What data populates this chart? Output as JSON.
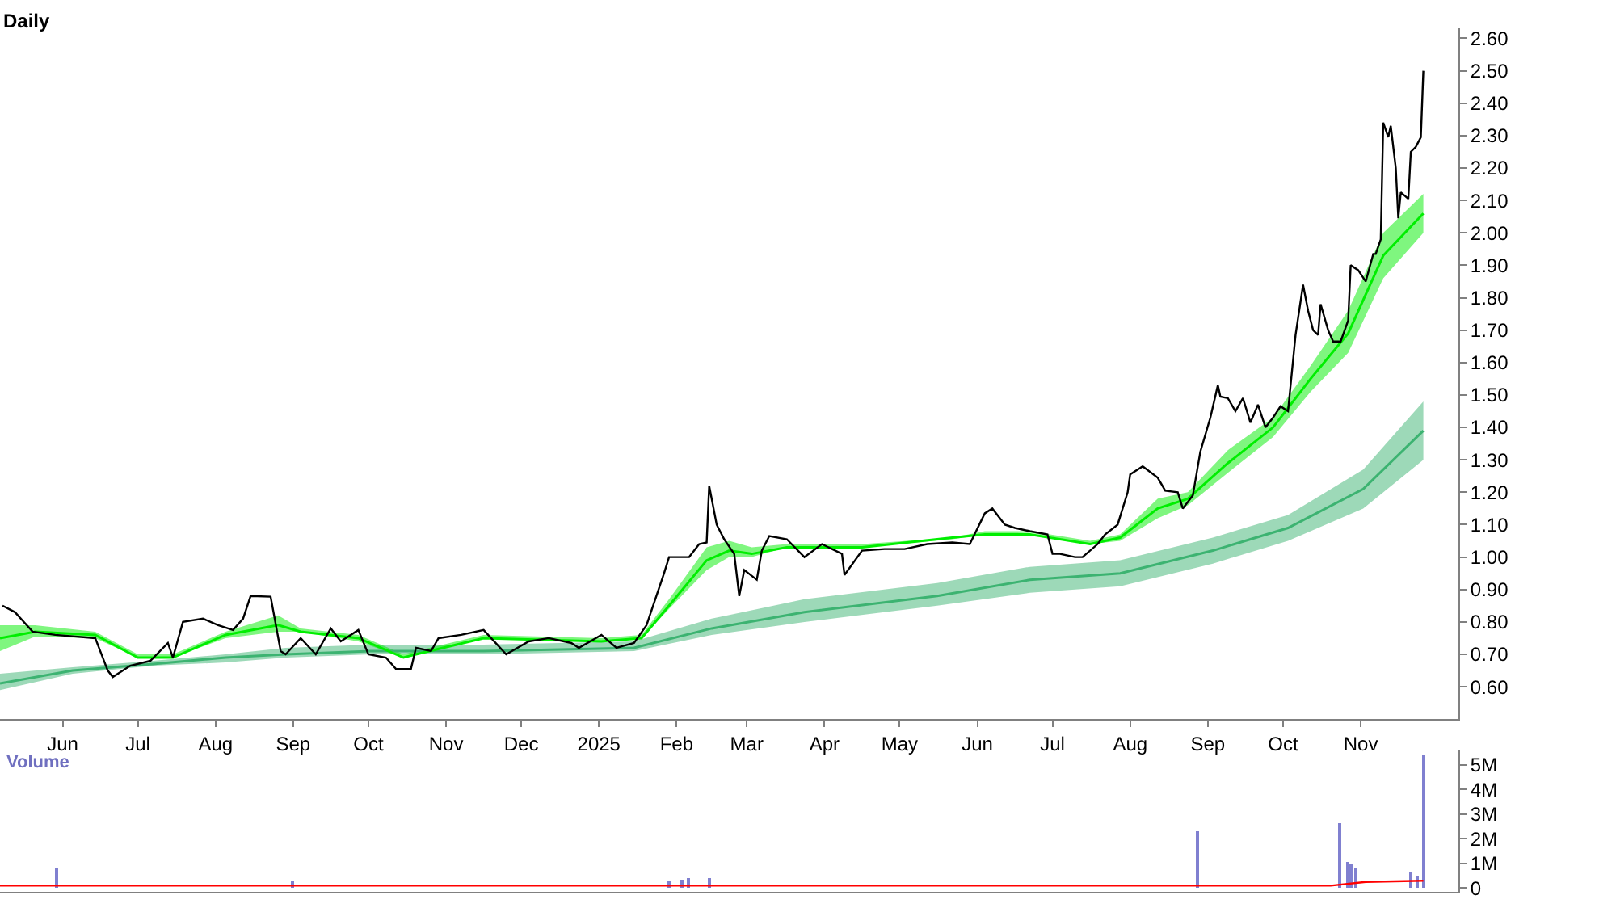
{
  "chart_data": [
    {
      "type": "line",
      "title": "Daily",
      "xlim": [
        "2024-05-07",
        "2025-12-10"
      ],
      "ylim": [
        0.5,
        2.63
      ],
      "xticks": [
        {
          "value": "2024-06-01",
          "label": "Jun"
        },
        {
          "value": "2024-07-01",
          "label": "Jul"
        },
        {
          "value": "2024-08-01",
          "label": "Aug"
        },
        {
          "value": "2024-09-01",
          "label": "Sep"
        },
        {
          "value": "2024-10-01",
          "label": "Oct"
        },
        {
          "value": "2024-11-01",
          "label": "Nov"
        },
        {
          "value": "2024-12-01",
          "label": "Dec"
        },
        {
          "value": "2025-01-01",
          "label": "2025"
        },
        {
          "value": "2025-02-01",
          "label": "Feb"
        },
        {
          "value": "2025-03-01",
          "label": "Mar"
        },
        {
          "value": "2025-04-01",
          "label": "Apr"
        },
        {
          "value": "2025-05-01",
          "label": "May"
        },
        {
          "value": "2025-06-01",
          "label": "Jun"
        },
        {
          "value": "2025-07-01",
          "label": "Jul"
        },
        {
          "value": "2025-08-01",
          "label": "Aug"
        },
        {
          "value": "2025-09-01",
          "label": "Sep"
        },
        {
          "value": "2025-10-01",
          "label": "Oct"
        },
        {
          "value": "2025-11-01",
          "label": "Nov"
        }
      ],
      "yticks": [
        {
          "value": 0.6,
          "label": "0.60"
        },
        {
          "value": 0.7,
          "label": "0.70"
        },
        {
          "value": 0.8,
          "label": "0.80"
        },
        {
          "value": 0.9,
          "label": "0.90"
        },
        {
          "value": 1.0,
          "label": "1.00"
        },
        {
          "value": 1.1,
          "label": "1.10"
        },
        {
          "value": 1.2,
          "label": "1.20"
        },
        {
          "value": 1.3,
          "label": "1.30"
        },
        {
          "value": 1.4,
          "label": "1.40"
        },
        {
          "value": 1.5,
          "label": "1.50"
        },
        {
          "value": 1.6,
          "label": "1.60"
        },
        {
          "value": 1.7,
          "label": "1.70"
        },
        {
          "value": 1.8,
          "label": "1.80"
        },
        {
          "value": 1.9,
          "label": "1.90"
        },
        {
          "value": 2.0,
          "label": "2.00"
        },
        {
          "value": 2.1,
          "label": "2.10"
        },
        {
          "value": 2.2,
          "label": "2.20"
        },
        {
          "value": 2.3,
          "label": "2.30"
        },
        {
          "value": 2.4,
          "label": "2.40"
        },
        {
          "value": 2.5,
          "label": "2.50"
        },
        {
          "value": 2.6,
          "label": "2.60"
        }
      ],
      "marker": "none",
      "line_style": "solid",
      "series": [
        {
          "color": "#3cb371",
          "x": [
            "2024-05-07",
            "2024-06-05",
            "2024-07-07",
            "2024-08-05",
            "2024-08-29",
            "2024-10-02",
            "2024-11-16",
            "2025-01-15",
            "2025-02-15",
            "2025-03-24",
            "2025-05-16",
            "2025-06-22",
            "2025-07-28",
            "2025-09-03",
            "2025-10-03",
            "2025-11-02",
            "2025-11-26"
          ],
          "lower": [
            0.59,
            0.64,
            0.665,
            0.675,
            0.69,
            0.7,
            0.7,
            0.71,
            0.76,
            0.8,
            0.85,
            0.89,
            0.91,
            0.98,
            1.05,
            1.15,
            1.3
          ],
          "upper": [
            0.64,
            0.66,
            0.68,
            0.7,
            0.72,
            0.73,
            0.73,
            0.74,
            0.81,
            0.87,
            0.92,
            0.97,
            0.99,
            1.06,
            1.13,
            1.27,
            1.48
          ],
          "values": [
            0.61,
            0.65,
            0.67,
            0.69,
            0.7,
            0.71,
            0.71,
            0.72,
            0.78,
            0.83,
            0.88,
            0.93,
            0.95,
            1.02,
            1.09,
            1.21,
            1.39
          ]
        },
        {
          "color": "#00ee00",
          "x": [
            "2024-05-07",
            "2024-05-21",
            "2024-06-14",
            "2024-07-01",
            "2024-07-15",
            "2024-08-05",
            "2024-08-26",
            "2024-09-04",
            "2024-09-27",
            "2024-10-15",
            "2024-10-20",
            "2024-11-16",
            "2025-01-02",
            "2025-01-18",
            "2025-01-29",
            "2025-02-13",
            "2025-02-22",
            "2025-03-03",
            "2025-03-17",
            "2025-04-16",
            "2025-05-22",
            "2025-06-04",
            "2025-06-22",
            "2025-07-16",
            "2025-07-28",
            "2025-08-12",
            "2025-08-24",
            "2025-09-09",
            "2025-09-27",
            "2025-10-12",
            "2025-10-27",
            "2025-11-10",
            "2025-11-26"
          ],
          "lower": [
            0.71,
            0.755,
            0.75,
            0.69,
            0.69,
            0.75,
            0.77,
            0.77,
            0.74,
            0.69,
            0.7,
            0.75,
            0.74,
            0.75,
            0.84,
            0.96,
            1.0,
            1.0,
            1.03,
            1.03,
            1.055,
            1.07,
            1.075,
            1.04,
            1.05,
            1.12,
            1.16,
            1.26,
            1.37,
            1.51,
            1.63,
            1.86,
            2.0
          ],
          "upper": [
            0.79,
            0.79,
            0.77,
            0.7,
            0.7,
            0.77,
            0.82,
            0.78,
            0.76,
            0.7,
            0.71,
            0.76,
            0.75,
            0.76,
            0.87,
            1.03,
            1.05,
            1.03,
            1.04,
            1.04,
            1.06,
            1.08,
            1.08,
            1.05,
            1.07,
            1.18,
            1.2,
            1.33,
            1.43,
            1.59,
            1.76,
            2.0,
            2.12
          ],
          "values": [
            0.75,
            0.77,
            0.76,
            0.69,
            0.69,
            0.76,
            0.79,
            0.77,
            0.75,
            0.69,
            0.7,
            0.75,
            0.74,
            0.75,
            0.85,
            0.99,
            1.02,
            1.01,
            1.03,
            1.03,
            1.06,
            1.07,
            1.07,
            1.04,
            1.06,
            1.15,
            1.18,
            1.29,
            1.4,
            1.55,
            1.69,
            1.93,
            2.06
          ]
        },
        {
          "color": "#000000",
          "x": [
            "2024-05-08",
            "2024-05-13",
            "2024-05-20",
            "2024-05-29",
            "2024-06-14",
            "2024-06-19",
            "2024-06-21",
            "2024-06-28",
            "2024-07-06",
            "2024-07-13",
            "2024-07-15",
            "2024-07-19",
            "2024-07-27",
            "2024-08-02",
            "2024-08-08",
            "2024-08-12",
            "2024-08-15",
            "2024-08-23",
            "2024-08-27",
            "2024-08-29",
            "2024-09-04",
            "2024-09-10",
            "2024-09-16",
            "2024-09-20",
            "2024-09-27",
            "2024-10-01",
            "2024-10-08",
            "2024-10-12",
            "2024-10-18",
            "2024-10-20",
            "2024-10-26",
            "2024-10-29",
            "2024-11-07",
            "2024-11-16",
            "2024-11-19",
            "2024-11-25",
            "2024-12-04",
            "2024-12-12",
            "2024-12-21",
            "2024-12-24",
            "2025-01-02",
            "2025-01-08",
            "2025-01-15",
            "2025-01-20",
            "2025-01-27",
            "2025-01-29",
            "2025-02-06",
            "2025-02-10",
            "2025-02-13",
            "2025-02-14",
            "2025-02-17",
            "2025-02-20",
            "2025-02-24",
            "2025-02-26",
            "2025-02-28",
            "2025-03-05",
            "2025-03-07",
            "2025-03-10",
            "2025-03-17",
            "2025-03-24",
            "2025-03-31",
            "2025-04-08",
            "2025-04-09",
            "2025-04-16",
            "2025-04-25",
            "2025-05-03",
            "2025-05-12",
            "2025-05-22",
            "2025-05-29",
            "2025-06-04",
            "2025-06-07",
            "2025-06-12",
            "2025-06-16",
            "2025-06-22",
            "2025-06-29",
            "2025-07-01",
            "2025-07-04",
            "2025-07-10",
            "2025-07-13",
            "2025-07-19",
            "2025-07-22",
            "2025-07-27",
            "2025-07-31",
            "2025-08-01",
            "2025-08-06",
            "2025-08-12",
            "2025-08-15",
            "2025-08-20",
            "2025-08-22",
            "2025-08-26",
            "2025-08-29",
            "2025-09-02",
            "2025-09-05",
            "2025-09-06",
            "2025-09-09",
            "2025-09-12",
            "2025-09-15",
            "2025-09-18",
            "2025-09-21",
            "2025-09-24",
            "2025-09-27",
            "2025-09-30",
            "2025-10-03",
            "2025-10-06",
            "2025-10-09",
            "2025-10-11",
            "2025-10-13",
            "2025-10-15",
            "2025-10-16",
            "2025-10-19",
            "2025-10-21",
            "2025-10-24",
            "2025-10-27",
            "2025-10-28",
            "2025-10-31",
            "2025-11-03",
            "2025-11-06",
            "2025-11-07",
            "2025-11-09",
            "2025-11-10",
            "2025-11-12",
            "2025-11-13",
            "2025-11-15",
            "2025-11-16",
            "2025-11-17",
            "2025-11-20",
            "2025-11-21",
            "2025-11-23",
            "2025-11-25",
            "2025-11-26"
          ],
          "values": [
            0.85,
            0.83,
            0.77,
            0.76,
            0.75,
            0.65,
            0.63,
            0.665,
            0.68,
            0.735,
            0.69,
            0.8,
            0.81,
            0.79,
            0.775,
            0.81,
            0.88,
            0.878,
            0.71,
            0.7,
            0.75,
            0.7,
            0.78,
            0.74,
            0.775,
            0.7,
            0.69,
            0.655,
            0.655,
            0.72,
            0.71,
            0.75,
            0.76,
            0.775,
            0.75,
            0.7,
            0.74,
            0.75,
            0.735,
            0.72,
            0.76,
            0.72,
            0.735,
            0.79,
            0.95,
            1.0,
            1.0,
            1.04,
            1.045,
            1.22,
            1.1,
            1.055,
            1.01,
            0.88,
            0.96,
            0.93,
            1.02,
            1.065,
            1.055,
            1.0,
            1.04,
            1.01,
            0.945,
            1.02,
            1.025,
            1.025,
            1.04,
            1.045,
            1.04,
            1.135,
            1.15,
            1.1,
            1.09,
            1.08,
            1.07,
            1.01,
            1.01,
            1.0,
            1.0,
            1.04,
            1.07,
            1.1,
            1.2,
            1.255,
            1.28,
            1.245,
            1.205,
            1.2,
            1.15,
            1.19,
            1.325,
            1.43,
            1.53,
            1.495,
            1.49,
            1.45,
            1.49,
            1.415,
            1.47,
            1.4,
            1.43,
            1.465,
            1.45,
            1.685,
            1.84,
            1.76,
            1.7,
            1.685,
            1.78,
            1.7,
            1.665,
            1.665,
            1.73,
            1.9,
            1.885,
            1.85,
            1.935,
            1.935,
            1.98,
            2.34,
            2.295,
            2.33,
            2.2,
            2.045,
            2.125,
            2.105,
            2.25,
            2.265,
            2.295,
            2.5
          ]
        }
      ]
    },
    {
      "type": "bar",
      "title": "Volume",
      "xlim": [
        "2024-05-07",
        "2025-12-10"
      ],
      "ylim": [
        -0.15,
        5.6
      ],
      "tick_labels": "y",
      "yticks": [
        {
          "value": 0,
          "label": "0"
        },
        {
          "value": 1,
          "label": "1M"
        },
        {
          "value": 2,
          "label": "2M"
        },
        {
          "value": 3,
          "label": "3M"
        },
        {
          "value": 4,
          "label": "4M"
        },
        {
          "value": 5,
          "label": "5M"
        }
      ],
      "series": [
        {
          "color": "#8080d0",
          "x": [
            "2024-05-30",
            "2024-09-01",
            "2025-01-29",
            "2025-02-03",
            "2025-02-06",
            "2025-02-14",
            "2025-08-28",
            "2025-10-24",
            "2025-10-27",
            "2025-10-28",
            "2025-10-30",
            "2025-11-21",
            "2025-11-24",
            "2025-11-26"
          ],
          "values": [
            0.8,
            0.3,
            0.3,
            0.35,
            0.4,
            0.45,
            2.35,
            2.65,
            1.1,
            1.0,
            0.8,
            0.7,
            0.5,
            5.4
          ]
        },
        {
          "type": "line",
          "color": "#ff0000",
          "x": [
            "2024-05-07",
            "2025-10-20",
            "2025-11-03",
            "2025-11-26"
          ],
          "values": [
            0.1,
            0.1,
            0.25,
            0.3
          ]
        }
      ]
    }
  ]
}
